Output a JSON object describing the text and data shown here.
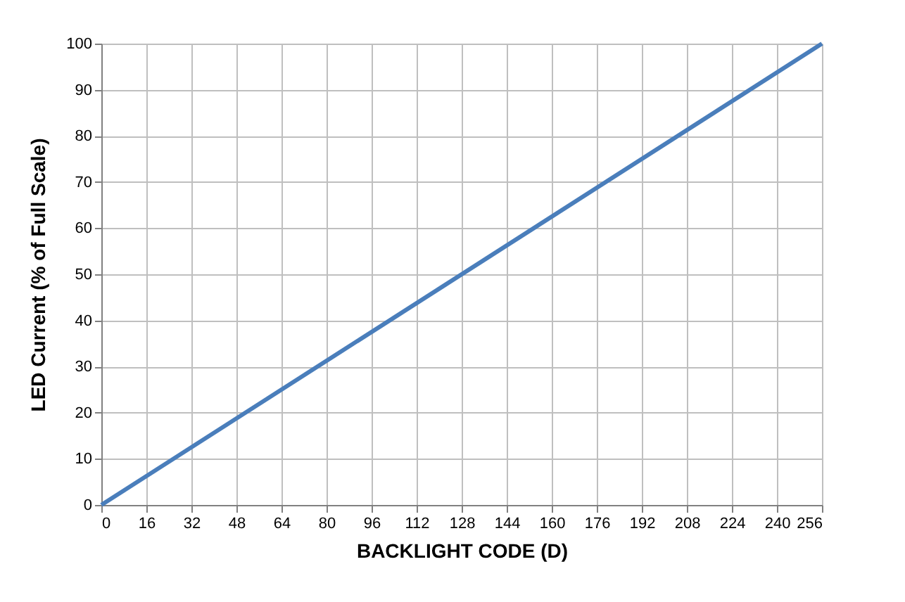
{
  "chart_data": {
    "type": "line",
    "xlabel": "BACKLIGHT CODE (D)",
    "ylabel": "LED Current (% of Full Scale)",
    "x": [
      0,
      256
    ],
    "series": [
      {
        "color": "#4a7ebb",
        "values": [
          0,
          100
        ]
      }
    ],
    "xlim": [
      0,
      256
    ],
    "xticks": [
      0,
      16,
      32,
      48,
      64,
      80,
      96,
      112,
      128,
      144,
      160,
      176,
      192,
      208,
      224,
      240,
      256
    ],
    "ylim": [
      0,
      100
    ],
    "yticks": [
      0,
      10,
      20,
      30,
      40,
      50,
      60,
      70,
      80,
      90,
      100
    ],
    "grid": true,
    "marker": "none",
    "line_style": "solid"
  }
}
